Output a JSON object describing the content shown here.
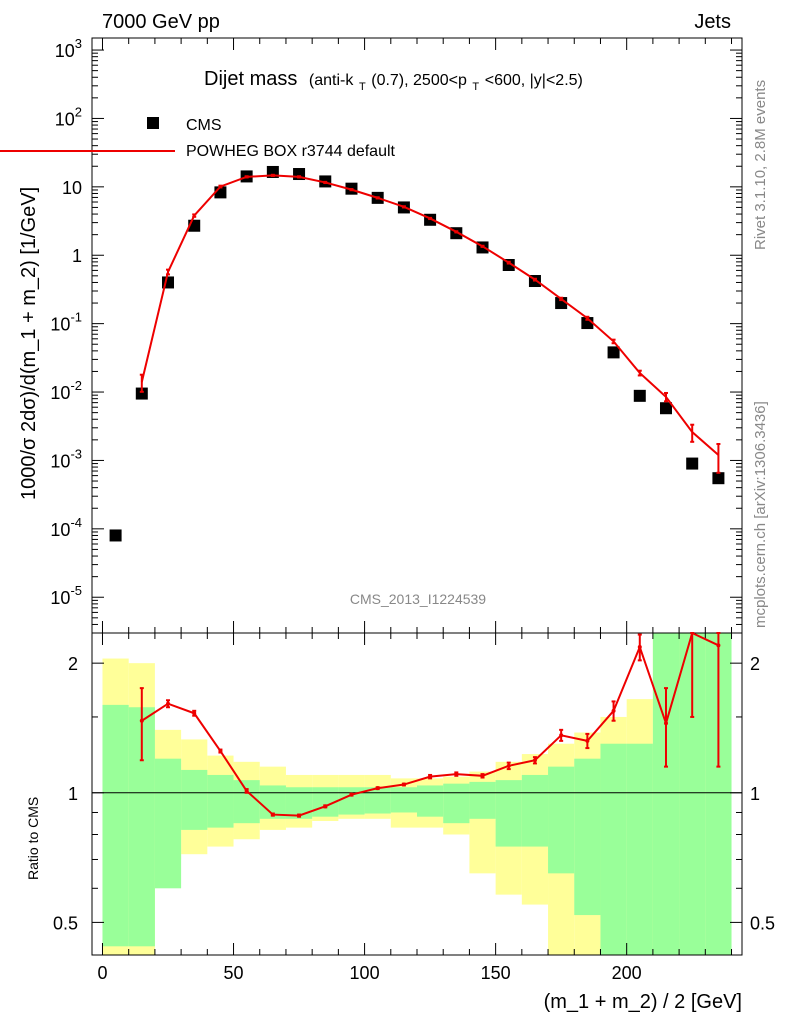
{
  "header": {
    "energy_label": "7000 GeV pp",
    "process_label": "Jets"
  },
  "side_labels": {
    "rivet_info": "Rivet 3.1.10,  2.8M events",
    "source_info": "mcplots.cern.ch [arXiv:1306.3436]"
  },
  "analysis_id": "CMS_2013_I1224539",
  "colors": {
    "mc_line": "#ee0000",
    "data_marker": "#000000",
    "band_inner": "#99ff99",
    "band_outer": "#ffff99"
  },
  "chart_data": {
    "type": "scatter",
    "title": {
      "main": "Dijet mass",
      "sub_a": "(anti-k",
      "sub_a_sub": "T",
      "sub_b": "(0.7), 2500<p",
      "sub_b_sub": "T",
      "sub_c": "<600, |y|<2.5)"
    },
    "xlabel": "(m_1 + m_2) / 2 [GeV]",
    "ylabel": "1000/σ 2dσ)/d(m_1 + m_2) [1/GeV]",
    "ratio_ylabel": "Ratio to CMS",
    "xlim": [
      -4,
      244
    ],
    "ylim": [
      3e-06,
      1500
    ],
    "yscale": "log",
    "ratio_ylim": [
      0.42,
      2.35
    ],
    "ratio_yscale": "log",
    "legend_position": "top-left",
    "x_ticks": [
      0,
      50,
      100,
      150,
      200
    ],
    "x_tick_labels": [
      "0",
      "50",
      "100",
      "150",
      "200"
    ],
    "y_ticks": [
      {
        "value": 1e-05,
        "base": "10",
        "exp": "-5"
      },
      {
        "value": 0.0001,
        "base": "10",
        "exp": "-4"
      },
      {
        "value": 0.001,
        "base": "10",
        "exp": "-3"
      },
      {
        "value": 0.01,
        "base": "10",
        "exp": "-2"
      },
      {
        "value": 0.1,
        "base": "10",
        "exp": "-1"
      },
      {
        "value": 1,
        "base": "1",
        "exp": ""
      },
      {
        "value": 10,
        "base": "10",
        "exp": ""
      },
      {
        "value": 100,
        "base": "10",
        "exp": "2"
      },
      {
        "value": 1000,
        "base": "10",
        "exp": "3"
      }
    ],
    "ratio_ticks": [
      0.5,
      1,
      2
    ],
    "ratio_tick_labels": [
      "0.5",
      "1",
      "2"
    ],
    "series": [
      {
        "name": "CMS",
        "kind": "data",
        "x": [
          5,
          15,
          25,
          35,
          45,
          55,
          65,
          75,
          85,
          95,
          105,
          115,
          125,
          135,
          145,
          155,
          165,
          175,
          185,
          195,
          205,
          215,
          225,
          235
        ],
        "y": [
          8e-05,
          0.0095,
          0.4,
          2.7,
          8.3,
          14.2,
          16.5,
          15.4,
          12.0,
          9.4,
          6.9,
          5.0,
          3.3,
          2.1,
          1.3,
          0.72,
          0.42,
          0.2,
          0.102,
          0.038,
          0.0088,
          0.0058,
          0.0009,
          0.00055
        ]
      },
      {
        "name": "POWHEG BOX r3744 default",
        "kind": "mc",
        "x": [
          15,
          25,
          35,
          45,
          55,
          65,
          75,
          85,
          95,
          105,
          115,
          125,
          135,
          145,
          155,
          165,
          175,
          185,
          195,
          205,
          215,
          225,
          235
        ],
        "y": [
          0.014,
          0.57,
          3.8,
          10.1,
          14.0,
          14.7,
          14.0,
          11.6,
          9.1,
          6.9,
          5.1,
          3.45,
          2.2,
          1.35,
          0.78,
          0.44,
          0.23,
          0.12,
          0.055,
          0.019,
          0.0085,
          0.0026,
          0.0012
        ],
        "y_err_rel": [
          0.28,
          0.08,
          0.04,
          0.03,
          0.02,
          0.02,
          0.02,
          0.02,
          0.02,
          0.02,
          0.02,
          0.02,
          0.02,
          0.02,
          0.03,
          0.03,
          0.04,
          0.05,
          0.06,
          0.08,
          0.14,
          0.28,
          0.45
        ]
      }
    ],
    "ratio": {
      "x": [
        15,
        25,
        35,
        45,
        55,
        65,
        75,
        85,
        95,
        105,
        115,
        125,
        135,
        145,
        155,
        165,
        175,
        185,
        195,
        205,
        215,
        225,
        235
      ],
      "y": [
        1.47,
        1.61,
        1.53,
        1.25,
        1.01,
        0.89,
        0.885,
        0.93,
        0.99,
        1.025,
        1.045,
        1.09,
        1.105,
        1.095,
        1.155,
        1.19,
        1.36,
        1.32,
        1.55,
        2.18,
        1.45,
        3.0,
        2.2
      ],
      "err_lo": [
        0.28,
        0.03,
        0.02,
        0.01,
        0.01,
        0.005,
        0.005,
        0.005,
        0.005,
        0.005,
        0.005,
        0.01,
        0.01,
        0.01,
        0.02,
        0.02,
        0.04,
        0.05,
        0.08,
        0.15,
        0.3,
        1.5,
        1.05
      ],
      "err_hi": [
        0.28,
        0.03,
        0.02,
        0.01,
        0.01,
        0.005,
        0.005,
        0.005,
        0.005,
        0.005,
        0.005,
        0.01,
        0.01,
        0.01,
        0.02,
        0.02,
        0.04,
        0.05,
        0.08,
        0.15,
        0.3,
        1.5,
        1.05
      ],
      "band_edges": [
        0,
        10,
        20,
        30,
        40,
        50,
        60,
        70,
        80,
        90,
        100,
        110,
        120,
        130,
        140,
        150,
        160,
        170,
        180,
        190,
        200,
        210,
        220,
        230,
        240
      ],
      "inner_lo": [
        0.44,
        0.44,
        0.6,
        0.82,
        0.83,
        0.85,
        0.87,
        0.87,
        0.88,
        0.89,
        0.895,
        0.9,
        0.88,
        0.85,
        0.87,
        0.75,
        0.75,
        0.65,
        0.52,
        0.3,
        0.3,
        0.3,
        0.3,
        0.3
      ],
      "inner_hi": [
        1.6,
        1.58,
        1.2,
        1.13,
        1.1,
        1.07,
        1.04,
        1.03,
        1.03,
        1.03,
        1.03,
        1.03,
        1.04,
        1.05,
        1.06,
        1.07,
        1.1,
        1.15,
        1.2,
        1.3,
        1.3,
        3.0,
        3.0,
        3.0
      ],
      "outer_lo": [
        0.39,
        0.39,
        0.7,
        0.72,
        0.75,
        0.78,
        0.82,
        0.83,
        0.86,
        0.87,
        0.87,
        0.83,
        0.83,
        0.8,
        0.65,
        0.58,
        0.55,
        0.4,
        0.4,
        0.3,
        0.3,
        0.3,
        0.3,
        0.3
      ],
      "outer_hi": [
        2.05,
        2.0,
        1.4,
        1.33,
        1.22,
        1.18,
        1.15,
        1.1,
        1.1,
        1.1,
        1.1,
        1.08,
        1.08,
        1.09,
        1.12,
        1.18,
        1.23,
        1.3,
        1.38,
        1.5,
        1.65,
        3.0,
        3.0,
        3.0
      ]
    }
  }
}
